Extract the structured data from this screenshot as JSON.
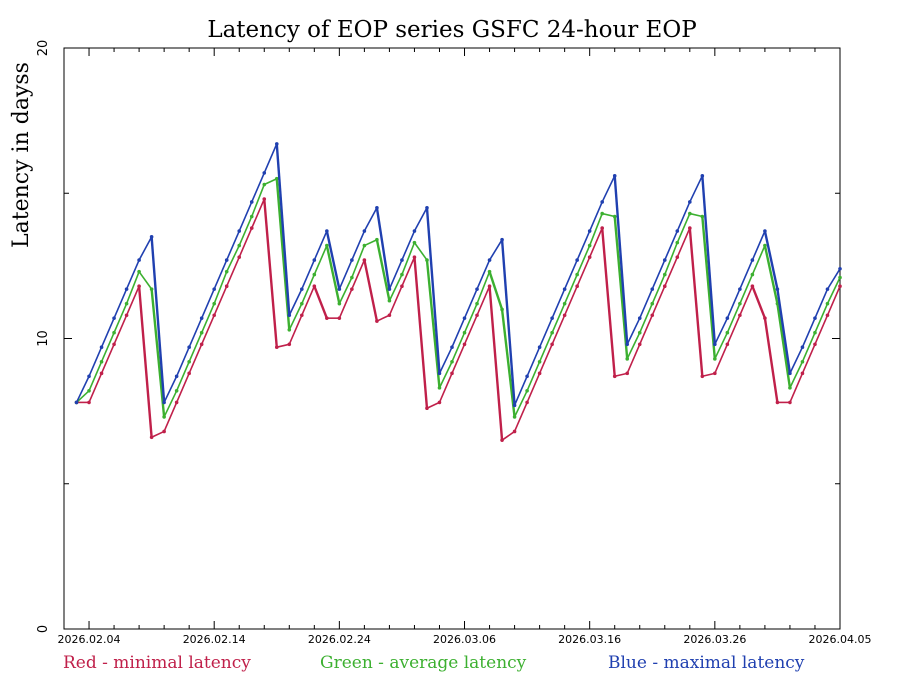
{
  "chart_data": {
    "type": "line",
    "title": "Latency of EOP  series GSFC 24-hour EOP",
    "ylabel": "Latency in dayss",
    "xlabel": "",
    "x_range": [
      "2026.02.02",
      "2026.04.05"
    ],
    "ylim": [
      0,
      20
    ],
    "yticks": [
      0,
      10,
      20
    ],
    "x_tick_labels": [
      "2026.02.04",
      "2026.02.14",
      "2026.02.24",
      "2026.03.06",
      "2026.03.16",
      "2026.03.26",
      "2026.04.05"
    ],
    "grid": false,
    "legend_placement": "bottom",
    "x": [
      "2026.02.03",
      "2026.02.04",
      "2026.02.05",
      "2026.02.06",
      "2026.02.07",
      "2026.02.08",
      "2026.02.09",
      "2026.02.10",
      "2026.02.11",
      "2026.02.12",
      "2026.02.13",
      "2026.02.14",
      "2026.02.15",
      "2026.02.16",
      "2026.02.17",
      "2026.02.18",
      "2026.02.19",
      "2026.02.20",
      "2026.02.21",
      "2026.02.22",
      "2026.02.23",
      "2026.02.24",
      "2026.02.25",
      "2026.02.26",
      "2026.02.27",
      "2026.02.28",
      "2026.03.01",
      "2026.03.02",
      "2026.03.03",
      "2026.03.04",
      "2026.03.05",
      "2026.03.06",
      "2026.03.07",
      "2026.03.08",
      "2026.03.09",
      "2026.03.10",
      "2026.03.11",
      "2026.03.12",
      "2026.03.13",
      "2026.03.14",
      "2026.03.15",
      "2026.03.16",
      "2026.03.17",
      "2026.03.18",
      "2026.03.19",
      "2026.03.20",
      "2026.03.21",
      "2026.03.22",
      "2026.03.23",
      "2026.03.24",
      "2026.03.25",
      "2026.03.26",
      "2026.03.27",
      "2026.03.28",
      "2026.03.29",
      "2026.03.30",
      "2026.03.31",
      "2026.04.01",
      "2026.04.02",
      "2026.04.03",
      "2026.04.04",
      "2026.04.05"
    ],
    "series": [
      {
        "name": "Red - minimal latency",
        "color": "#c0204a",
        "values": [
          7.8,
          7.8,
          8.8,
          9.8,
          10.8,
          11.8,
          6.6,
          6.8,
          7.8,
          8.8,
          9.8,
          10.8,
          11.8,
          12.8,
          13.8,
          14.8,
          9.7,
          9.8,
          10.8,
          11.8,
          10.7,
          10.7,
          11.7,
          12.7,
          10.6,
          10.8,
          11.8,
          12.8,
          7.6,
          7.8,
          8.8,
          9.8,
          10.8,
          11.8,
          6.5,
          6.8,
          7.8,
          8.8,
          9.8,
          10.8,
          11.8,
          12.8,
          13.8,
          8.7,
          8.8,
          9.8,
          10.8,
          11.8,
          12.8,
          13.8,
          8.7,
          8.8,
          9.8,
          10.8,
          11.8,
          10.7,
          7.8,
          7.8,
          8.8,
          9.8,
          10.8,
          11.8
        ]
      },
      {
        "name": "Green - average latency",
        "color": "#3cb030",
        "values": [
          7.8,
          8.2,
          9.2,
          10.2,
          11.2,
          12.3,
          11.7,
          7.3,
          8.2,
          9.2,
          10.2,
          11.2,
          12.3,
          13.2,
          14.2,
          15.3,
          15.5,
          10.3,
          11.2,
          12.2,
          13.2,
          11.2,
          12.1,
          13.2,
          13.4,
          11.3,
          12.2,
          13.3,
          12.7,
          8.3,
          9.2,
          10.2,
          11.2,
          12.3,
          11.0,
          7.3,
          8.2,
          9.2,
          10.2,
          11.2,
          12.2,
          13.2,
          14.3,
          14.2,
          9.3,
          10.2,
          11.2,
          12.2,
          13.3,
          14.3,
          14.2,
          9.3,
          10.2,
          11.2,
          12.2,
          13.2,
          11.2,
          8.3,
          9.2,
          10.2,
          11.2,
          12.1
        ]
      },
      {
        "name": "Blue - maximal latency",
        "color": "#2040b0",
        "values": [
          7.8,
          8.7,
          9.7,
          10.7,
          11.7,
          12.7,
          13.5,
          7.8,
          8.7,
          9.7,
          10.7,
          11.7,
          12.7,
          13.7,
          14.7,
          15.7,
          16.7,
          10.8,
          11.7,
          12.7,
          13.7,
          11.7,
          12.7,
          13.7,
          14.5,
          11.7,
          12.7,
          13.7,
          14.5,
          8.8,
          9.7,
          10.7,
          11.7,
          12.7,
          13.4,
          7.7,
          8.7,
          9.7,
          10.7,
          11.7,
          12.7,
          13.7,
          14.7,
          15.6,
          9.8,
          10.7,
          11.7,
          12.7,
          13.7,
          14.7,
          15.6,
          9.8,
          10.7,
          11.7,
          12.7,
          13.7,
          11.7,
          8.8,
          9.7,
          10.7,
          11.7,
          12.4
        ]
      }
    ]
  }
}
